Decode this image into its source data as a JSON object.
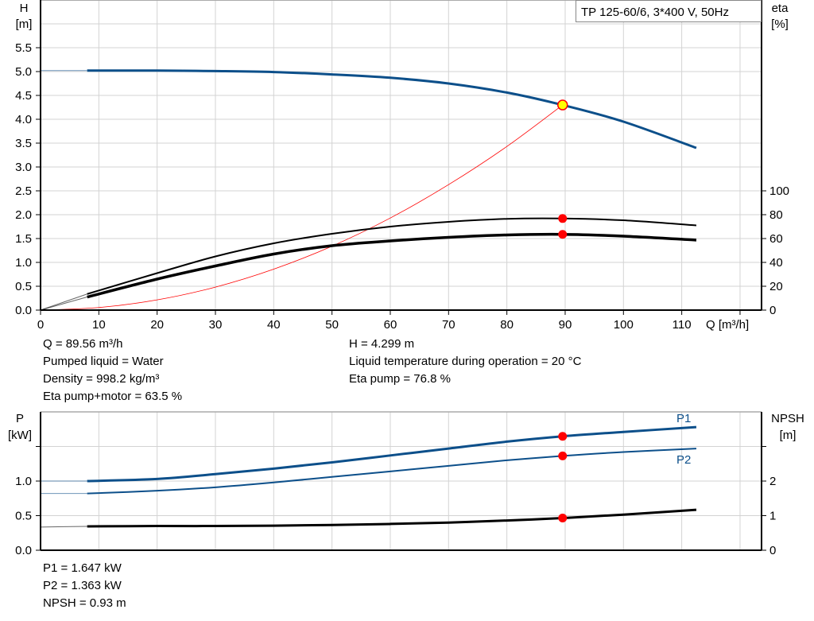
{
  "chart_data": [
    {
      "type": "line",
      "title": "TP 125-60/6, 3*400 V, 50Hz",
      "xlabel": "Q [m³/h]",
      "ylabel": "H",
      "ylabel_unit": "[m]",
      "y2label": "eta",
      "y2label_unit": "[%]",
      "xlim": [
        0,
        120
      ],
      "ylim": [
        0,
        6
      ],
      "y2lim": [
        0,
        260
      ],
      "grid": true,
      "xticks": [
        "0",
        "10",
        "20",
        "30",
        "40",
        "50",
        "60",
        "70",
        "80",
        "90",
        "100",
        "110"
      ],
      "yticks": [
        "0.0",
        "0.5",
        "1.0",
        "1.5",
        "2.0",
        "2.5",
        "3.0",
        "3.5",
        "4.0",
        "4.5",
        "5.0",
        "5.5"
      ],
      "y2ticks": [
        "0",
        "20",
        "40",
        "60",
        "80",
        "100"
      ],
      "series": [
        {
          "id": "H",
          "axis": "left",
          "color": "#0c4f8a",
          "x": [
            0,
            8,
            20,
            30,
            40,
            50,
            60,
            70,
            80,
            89.56,
            100,
            112.5
          ],
          "y": [
            5.02,
            5.02,
            5.02,
            5.01,
            4.99,
            4.94,
            4.87,
            4.75,
            4.56,
            4.299,
            3.95,
            3.4
          ]
        },
        {
          "id": "eta_pump",
          "axis": "right",
          "color": "#000000",
          "x": [
            0,
            8,
            20,
            30,
            40,
            50,
            60,
            70,
            80,
            89.56,
            100,
            112.5
          ],
          "y": [
            0,
            13.5,
            31,
            45,
            56,
            64,
            70,
            74,
            76.5,
            76.8,
            75.3,
            71
          ]
        },
        {
          "id": "eta_pump_motor",
          "axis": "right",
          "color": "#000000",
          "x": [
            0,
            8,
            20,
            30,
            40,
            50,
            60,
            70,
            80,
            89.56,
            100,
            112.5
          ],
          "y": [
            0,
            11,
            26,
            37,
            47,
            54,
            58,
            61,
            63,
            63.5,
            62,
            58.7
          ]
        },
        {
          "id": "system_curve",
          "axis": "left",
          "color": "#ff0000",
          "x": [
            0,
            10,
            20,
            30,
            40,
            50,
            60,
            70,
            80,
            89.56
          ],
          "y": [
            0,
            0.054,
            0.214,
            0.482,
            0.858,
            1.34,
            1.93,
            2.63,
            3.43,
            4.299
          ]
        }
      ],
      "operating_point": {
        "Q": 89.56,
        "H": 4.299,
        "eta_pump": 76.8,
        "eta_pump_motor": 63.5
      }
    },
    {
      "type": "line",
      "xlim": [
        0,
        120
      ],
      "ylabel": "P",
      "ylabel_unit": "[kW]",
      "y2label": "NPSH",
      "y2label_unit": "[m]",
      "ylim": [
        0,
        2
      ],
      "y2lim": [
        0,
        4
      ],
      "grid": true,
      "yticks": [
        "0.0",
        "0.5",
        "1.0",
        ""
      ],
      "y2ticks": [
        "0",
        "1",
        "2",
        ""
      ],
      "series": [
        {
          "id": "P1",
          "name": "P1",
          "axis": "left",
          "color": "#0c4f8a",
          "x": [
            0,
            8,
            20,
            30,
            40,
            50,
            60,
            70,
            80,
            89.56,
            100,
            112.5
          ],
          "y": [
            1.0,
            1.0,
            1.03,
            1.1,
            1.18,
            1.27,
            1.37,
            1.47,
            1.57,
            1.647,
            1.71,
            1.78
          ]
        },
        {
          "id": "P2",
          "name": "P2",
          "axis": "left",
          "color": "#0c4f8a",
          "x": [
            0,
            8,
            20,
            30,
            40,
            50,
            60,
            70,
            80,
            89.56,
            100,
            112.5
          ],
          "y": [
            0.82,
            0.82,
            0.86,
            0.91,
            0.98,
            1.06,
            1.14,
            1.22,
            1.3,
            1.363,
            1.42,
            1.47
          ]
        },
        {
          "id": "NPSH",
          "axis": "right",
          "color": "#000000",
          "x": [
            0,
            8,
            20,
            30,
            40,
            50,
            60,
            70,
            80,
            89.56,
            100,
            112.5
          ],
          "y": [
            0.67,
            0.69,
            0.7,
            0.7,
            0.71,
            0.73,
            0.76,
            0.8,
            0.86,
            0.93,
            1.03,
            1.17
          ]
        }
      ],
      "operating_point": {
        "Q": 89.56,
        "P1": 1.647,
        "P2": 1.363,
        "NPSH": 0.93
      }
    }
  ],
  "info_top": {
    "left": [
      "Q = 89.56 m³/h",
      "Pumped liquid = Water",
      "Density = 998.2 kg/m³",
      "Eta pump+motor = 63.5 %"
    ],
    "right": [
      "H = 4.299 m",
      "Liquid temperature during operation = 20 °C",
      "Eta pump = 76.8 %"
    ]
  },
  "info_bottom": [
    "P1 = 1.647 kW",
    "P2 = 1.363 kW",
    "NPSH = 0.93 m"
  ],
  "colors": {
    "pump_blue": "#0c4f8a",
    "operating_point": "#ff0000",
    "duty_point_fill": "#ffff00",
    "grid": "#d3d3d3"
  }
}
